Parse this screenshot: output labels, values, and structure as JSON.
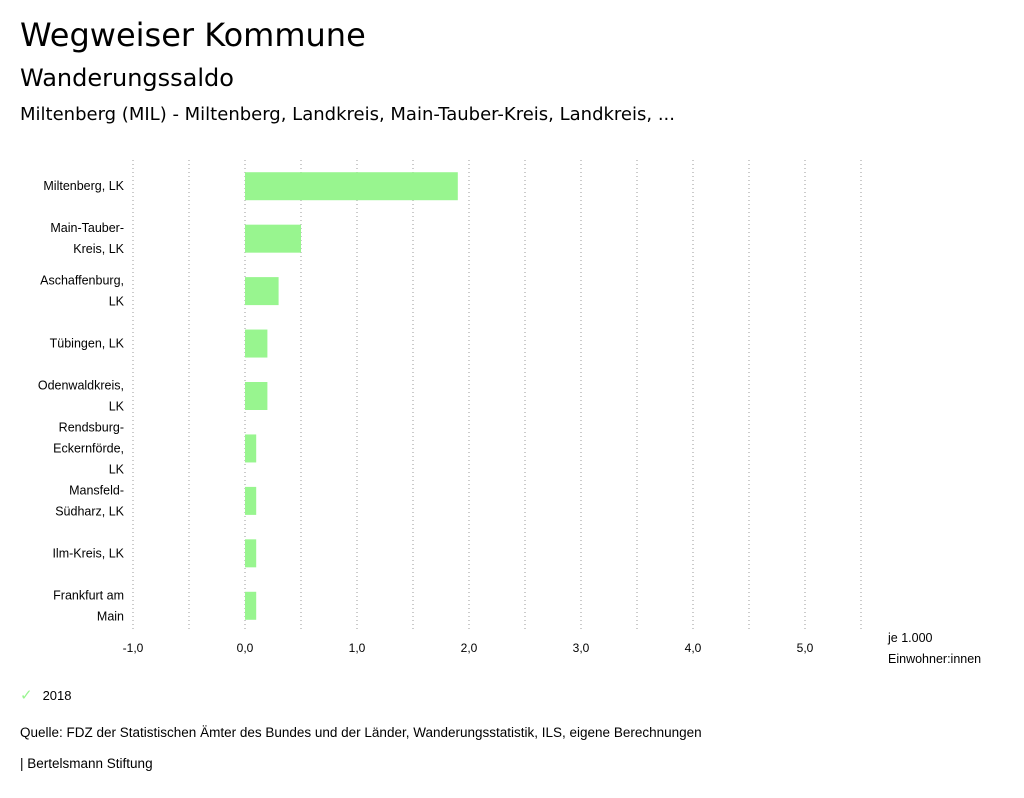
{
  "header": {
    "title": "Wegweiser Kommune",
    "subtitle": "Wanderungssaldo",
    "region": "Miltenberg (MIL) - Miltenberg, Landkreis, Main-Tauber-Kreis, Landkreis, ..."
  },
  "chart_data": {
    "type": "bar",
    "orientation": "horizontal",
    "categories": [
      [
        "Miltenberg, LK"
      ],
      [
        "Main-Tauber-",
        "Kreis, LK"
      ],
      [
        "Aschaffenburg,",
        "LK"
      ],
      [
        "Tübingen, LK"
      ],
      [
        "Odenwaldkreis,",
        "LK"
      ],
      [
        "Rendsburg-",
        "Eckernförde,",
        "LK"
      ],
      [
        "Mansfeld-",
        "Südharz, LK"
      ],
      [
        "Ilm-Kreis, LK"
      ],
      [
        "Frankfurt am",
        "Main"
      ]
    ],
    "series": [
      {
        "name": "2018",
        "color": "#98f58f",
        "values": [
          1.9,
          0.5,
          0.3,
          0.2,
          0.2,
          0.1,
          0.1,
          0.1,
          0.1
        ]
      }
    ],
    "xlim": [
      -1.0,
      5.5
    ],
    "xticks": [
      -1.0,
      0.0,
      1.0,
      2.0,
      3.0,
      4.0,
      5.0
    ],
    "xtick_labels": [
      "-1,0",
      "0,0",
      "1,0",
      "2,0",
      "3,0",
      "4,0",
      "5,0"
    ],
    "xlabel": [
      "je 1.000",
      "Einwohner:innen"
    ],
    "grid": "vertical dotted"
  },
  "legend": {
    "label": "2018",
    "color": "#98f58f"
  },
  "footer": {
    "source": "Quelle: FDZ der Statistischen Ämter des Bundes und der Länder, Wanderungsstatistik, ILS, eigene Berechnungen",
    "credit": "| Bertelsmann Stiftung"
  }
}
